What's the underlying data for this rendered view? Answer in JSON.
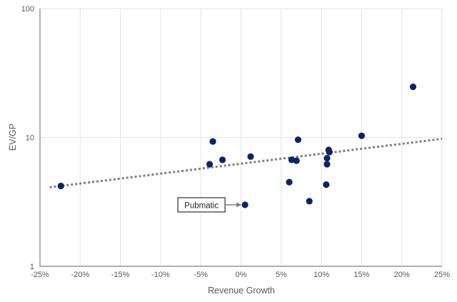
{
  "chart_data": {
    "type": "scatter",
    "title": "",
    "xlabel": "Revenue Growth",
    "ylabel": "EV/GP",
    "xlim": [
      -25,
      25
    ],
    "ylim": [
      1,
      100
    ],
    "y_scale": "log",
    "grid": "vertical and horizontal major gridlines",
    "x_ticks": [
      "-25%",
      "-20%",
      "-15%",
      "-10%",
      "-5%",
      "0%",
      "5%",
      "10%",
      "15%",
      "20%",
      "25%"
    ],
    "x_tick_values": [
      -25,
      -20,
      -15,
      -10,
      -5,
      0,
      5,
      10,
      15,
      20,
      25
    ],
    "y_ticks": [
      "1",
      "10",
      "100"
    ],
    "y_tick_values": [
      1,
      10,
      100
    ],
    "marker_color": "#0c2461",
    "trendline_color": "#7f7f7f",
    "points": [
      {
        "x": -22.4,
        "y": 4.2
      },
      {
        "x": -3.5,
        "y": 9.3
      },
      {
        "x": -3.9,
        "y": 6.2
      },
      {
        "x": -2.3,
        "y": 6.7
      },
      {
        "x": 1.2,
        "y": 7.1
      },
      {
        "x": 0.5,
        "y": 3.0,
        "label": "Pubmatic"
      },
      {
        "x": 7.1,
        "y": 9.6
      },
      {
        "x": 6.3,
        "y": 6.7
      },
      {
        "x": 6.9,
        "y": 6.6
      },
      {
        "x": 6.0,
        "y": 4.5
      },
      {
        "x": 8.5,
        "y": 3.2
      },
      {
        "x": 10.9,
        "y": 8.0
      },
      {
        "x": 11.0,
        "y": 7.7
      },
      {
        "x": 10.7,
        "y": 6.9
      },
      {
        "x": 10.7,
        "y": 6.2
      },
      {
        "x": 10.6,
        "y": 4.3
      },
      {
        "x": 15.0,
        "y": 10.3
      },
      {
        "x": 21.4,
        "y": 24.7
      }
    ],
    "trendline": {
      "type": "exponential",
      "x": [
        -23.8,
        25
      ],
      "y": [
        4.1,
        9.75
      ]
    },
    "annotations": [
      {
        "text": "Pubmatic",
        "x": 0.5,
        "y": 3.0
      }
    ]
  }
}
